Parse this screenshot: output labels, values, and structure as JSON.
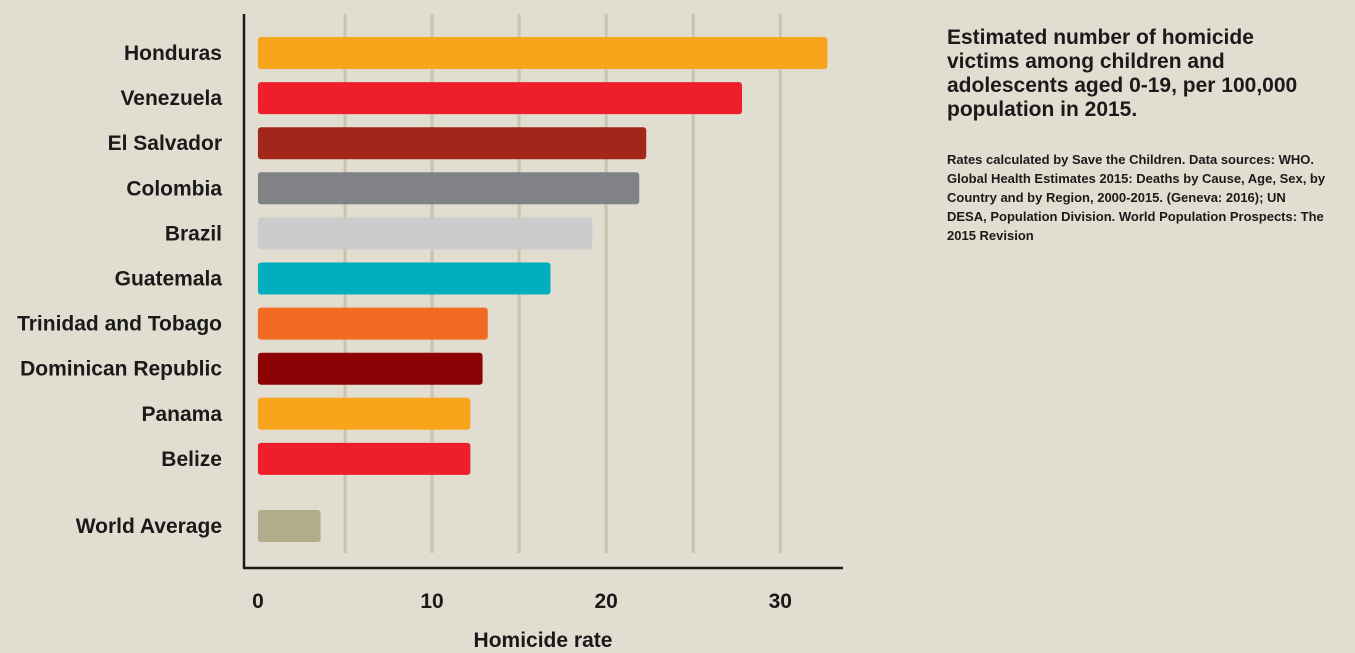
{
  "chart_data": {
    "type": "bar",
    "orientation": "horizontal",
    "categories": [
      "Honduras",
      "Venezuela",
      "El Salvador",
      "Colombia",
      "Brazil",
      "Guatemala",
      "Trinidad and Tobago",
      "Dominican Republic",
      "Panama",
      "Belize",
      "World Average"
    ],
    "values": [
      32.7,
      27.8,
      22.3,
      21.9,
      19.2,
      16.8,
      13.2,
      12.9,
      12.2,
      12.2,
      3.6
    ],
    "colors": [
      "#f8a51c",
      "#ee1f2b",
      "#a1271a",
      "#818285",
      "#cbcccc",
      "#00aebd",
      "#f26b23",
      "#8b0304",
      "#f8a51c",
      "#ee1f2b",
      "#b3ac8a"
    ],
    "xlabel": "Homicide rate",
    "xticks": [
      0,
      10,
      20,
      30
    ],
    "xlim": [
      -0.8,
      33.6
    ],
    "grid": true
  },
  "side_panel": {
    "title": "Estimated number of homicide victims among children and adolescents aged 0-19, per 100,000 population in 2015.",
    "note": "Rates calculated by Save the Children. Data sources: WHO. Global Health Estimates 2015: Deaths by Cause, Age, Sex, by Country and by Region, 2000-2015. (Geneva: 2016); UN DESA, Population Division. World Population Prospects: The 2015 Revision"
  }
}
